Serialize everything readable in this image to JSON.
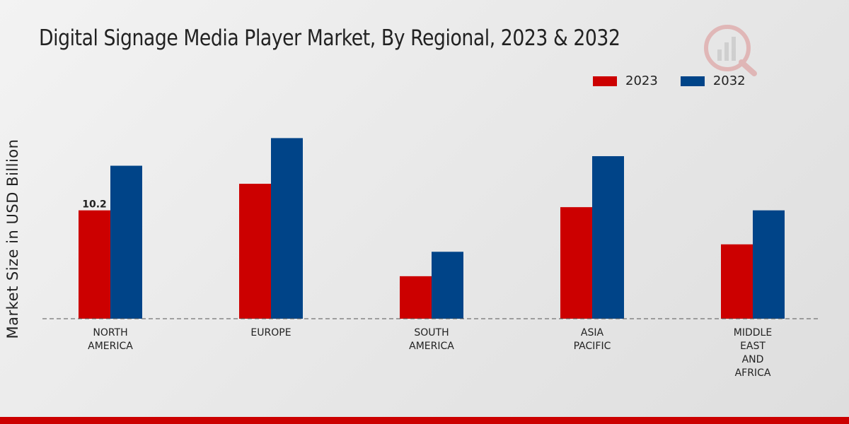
{
  "title": "Digital Signage Media Player Market, By Regional, 2023 & 2032",
  "colors": {
    "series_2023": "#cc0000",
    "series_2032": "#004488",
    "footer": "#cc0000"
  },
  "logo": {
    "icon": "watermark-logo-icon"
  },
  "chart_data": {
    "type": "bar",
    "title": "Digital Signage Media Player Market, By Regional, 2023 & 2032",
    "xlabel": "",
    "ylabel": "Market Size in USD Billion",
    "categories": [
      [
        "NORTH",
        "AMERICA"
      ],
      [
        "EUROPE"
      ],
      [
        "SOUTH",
        "AMERICA"
      ],
      [
        "ASIA",
        "PACIFIC"
      ],
      [
        "MIDDLE",
        "EAST",
        "AND",
        "AFRICA"
      ]
    ],
    "series": [
      {
        "name": "2023",
        "color": "#cc0000",
        "values": [
          10.2,
          12.7,
          4.0,
          10.5,
          7.0
        ]
      },
      {
        "name": "2032",
        "color": "#004488",
        "values": [
          14.4,
          17.0,
          6.3,
          15.3,
          10.2
        ]
      }
    ],
    "data_labels": [
      {
        "series": 0,
        "index": 0,
        "text": "10.2"
      }
    ],
    "ylim": [
      0,
      30
    ],
    "grid": false,
    "legend": "top-right"
  }
}
